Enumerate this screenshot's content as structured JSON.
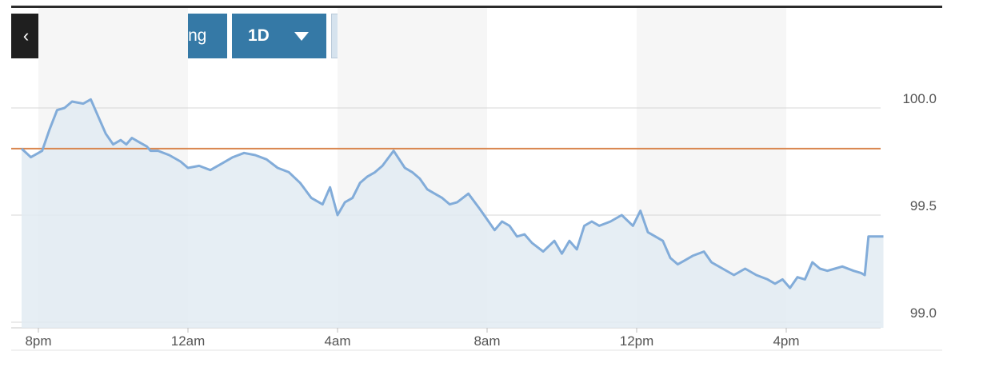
{
  "toolbar": {
    "back_icon": "‹",
    "advanced_label": "Advanced Charting",
    "range_label": "1D",
    "dollar_label": "$",
    "percent_label": "%"
  },
  "colors": {
    "line": "#82acd9",
    "area": "#e2ebf2",
    "reference": "#d9864e",
    "band": "#f6f6f6",
    "grid": "#d7d7d7"
  },
  "chart_data": {
    "type": "area",
    "title": "",
    "xlabel": "",
    "ylabel": "",
    "x_ticks": [
      "8pm",
      "12am",
      "4am",
      "8am",
      "12pm",
      "4pm"
    ],
    "x_tick_hours": [
      0,
      4,
      8,
      12,
      16,
      20
    ],
    "x_range_hours": [
      -0.45,
      22.6
    ],
    "y_ticks": [
      99.0,
      99.5,
      100.0
    ],
    "y_tick_labels": [
      "99.0",
      "99.5",
      "100.0"
    ],
    "ylim": [
      99.0,
      100.05
    ],
    "reference_line": 99.81,
    "grid": true,
    "shaded_bands_hours": [
      [
        0,
        4
      ],
      [
        8,
        12
      ],
      [
        16,
        20
      ]
    ],
    "series": [
      {
        "x": [
          -0.45,
          -0.2,
          0.0,
          0.1,
          0.3,
          0.5,
          0.7,
          0.9,
          1.2,
          1.4,
          1.6,
          1.8,
          2.0,
          2.2,
          2.35,
          2.5,
          2.7,
          2.9,
          3.0,
          3.2,
          3.5,
          3.8,
          4.0,
          4.3,
          4.6,
          4.9,
          5.2,
          5.5,
          5.8,
          6.1,
          6.4,
          6.7,
          7.0,
          7.3,
          7.6,
          7.8,
          8.0,
          8.2,
          8.4,
          8.6,
          8.8,
          9.0,
          9.2,
          9.5,
          9.8,
          10.0,
          10.2,
          10.4,
          10.6,
          10.8,
          11.0,
          11.2,
          11.5,
          11.8,
          12.0,
          12.2,
          12.4,
          12.6,
          12.8,
          13.0,
          13.2,
          13.5,
          13.8,
          14.0,
          14.2,
          14.4,
          14.6,
          14.8,
          15.0,
          15.3,
          15.6,
          15.9,
          16.1,
          16.3,
          16.5,
          16.7,
          16.9,
          17.1,
          17.3,
          17.5,
          17.8,
          18.0,
          18.3,
          18.6,
          18.9,
          19.2,
          19.5,
          19.7,
          19.9,
          20.1,
          20.3,
          20.5,
          20.7,
          20.9,
          21.1,
          21.3,
          21.5,
          21.8,
          22.0,
          22.1,
          22.2,
          22.6
        ],
        "y": [
          99.81,
          99.77,
          99.79,
          99.8,
          99.9,
          99.99,
          100.0,
          100.03,
          100.02,
          100.04,
          99.96,
          99.88,
          99.83,
          99.85,
          99.83,
          99.86,
          99.84,
          99.82,
          99.8,
          99.8,
          99.78,
          99.75,
          99.72,
          99.73,
          99.71,
          99.74,
          99.77,
          99.79,
          99.78,
          99.76,
          99.72,
          99.7,
          99.65,
          99.58,
          99.55,
          99.63,
          99.5,
          99.56,
          99.58,
          99.65,
          99.68,
          99.7,
          99.73,
          99.8,
          99.72,
          99.7,
          99.67,
          99.62,
          99.6,
          99.58,
          99.55,
          99.56,
          99.6,
          99.53,
          99.48,
          99.43,
          99.47,
          99.45,
          99.4,
          99.41,
          99.37,
          99.33,
          99.38,
          99.32,
          99.38,
          99.34,
          99.45,
          99.47,
          99.45,
          99.47,
          99.5,
          99.45,
          99.52,
          99.42,
          99.4,
          99.38,
          99.3,
          99.27,
          99.29,
          99.31,
          99.33,
          99.28,
          99.25,
          99.22,
          99.25,
          99.22,
          99.2,
          99.18,
          99.2,
          99.16,
          99.21,
          99.2,
          99.28,
          99.25,
          99.24,
          99.25,
          99.26,
          99.24,
          99.23,
          99.22,
          99.4,
          99.4
        ]
      }
    ]
  }
}
